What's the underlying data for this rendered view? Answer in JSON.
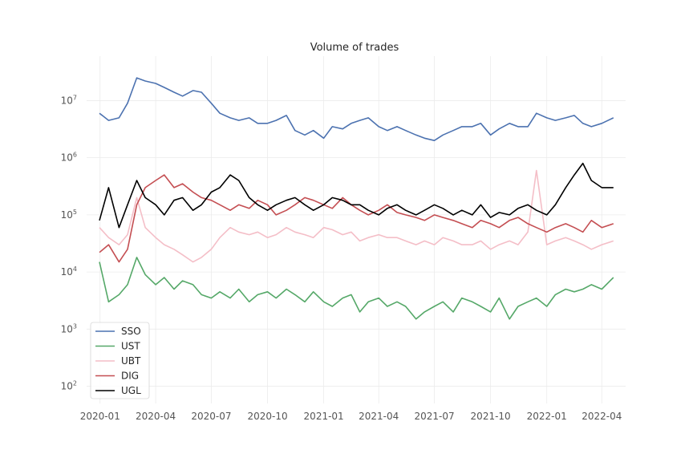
{
  "chart_data": {
    "type": "line",
    "title": "Volume of trades",
    "xlabel": "",
    "ylabel": "",
    "yscale": "log",
    "ylim": [
      50,
      60000000
    ],
    "xlim": [
      "2019-12-10",
      "2022-05-10"
    ],
    "y_ticks": [
      {
        "value": 100,
        "base": "10",
        "exp": "2"
      },
      {
        "value": 1000,
        "base": "10",
        "exp": "3"
      },
      {
        "value": 10000,
        "base": "10",
        "exp": "4"
      },
      {
        "value": 100000,
        "base": "10",
        "exp": "5"
      },
      {
        "value": 1000000,
        "base": "10",
        "exp": "6"
      },
      {
        "value": 10000000,
        "base": "10",
        "exp": "7"
      }
    ],
    "x_ticks": [
      {
        "date": "2020-01-01",
        "label": "2020-01"
      },
      {
        "date": "2020-04-01",
        "label": "2020-04"
      },
      {
        "date": "2020-07-01",
        "label": "2020-07"
      },
      {
        "date": "2020-10-01",
        "label": "2020-10"
      },
      {
        "date": "2021-01-01",
        "label": "2021-01"
      },
      {
        "date": "2021-04-01",
        "label": "2021-04"
      },
      {
        "date": "2021-07-01",
        "label": "2021-07"
      },
      {
        "date": "2021-10-01",
        "label": "2021-10"
      },
      {
        "date": "2022-01-01",
        "label": "2022-01"
      },
      {
        "date": "2022-04-01",
        "label": "2022-04"
      }
    ],
    "grid": true,
    "legend_position": "lower-left",
    "series": [
      {
        "name": "SSO",
        "color": "#4c72b0",
        "x": [
          "2019-12-31",
          "2020-01-15",
          "2020-02-01",
          "2020-02-15",
          "2020-03-01",
          "2020-03-15",
          "2020-04-01",
          "2020-04-15",
          "2020-05-01",
          "2020-05-15",
          "2020-06-01",
          "2020-06-15",
          "2020-07-01",
          "2020-07-15",
          "2020-08-01",
          "2020-08-15",
          "2020-09-01",
          "2020-09-15",
          "2020-10-01",
          "2020-10-15",
          "2020-11-01",
          "2020-11-15",
          "2020-12-01",
          "2020-12-15",
          "2021-01-01",
          "2021-01-15",
          "2021-02-01",
          "2021-02-15",
          "2021-03-01",
          "2021-03-15",
          "2021-04-01",
          "2021-04-15",
          "2021-05-01",
          "2021-05-15",
          "2021-06-01",
          "2021-06-15",
          "2021-07-01",
          "2021-07-15",
          "2021-08-01",
          "2021-08-15",
          "2021-09-01",
          "2021-09-15",
          "2021-10-01",
          "2021-10-15",
          "2021-11-01",
          "2021-11-15",
          "2021-12-01",
          "2021-12-15",
          "2022-01-01",
          "2022-01-15",
          "2022-02-01",
          "2022-02-15",
          "2022-03-01",
          "2022-03-15",
          "2022-04-01",
          "2022-04-20"
        ],
        "values": [
          6000000,
          4500000,
          5000000,
          9000000,
          25000000,
          22000000,
          20000000,
          17000000,
          14000000,
          12000000,
          15000000,
          14000000,
          9000000,
          6000000,
          5000000,
          4500000,
          5000000,
          4000000,
          4000000,
          4500000,
          5500000,
          3000000,
          2500000,
          3000000,
          2200000,
          3500000,
          3200000,
          4000000,
          4500000,
          5000000,
          3500000,
          3000000,
          3500000,
          3000000,
          2500000,
          2200000,
          2000000,
          2500000,
          3000000,
          3500000,
          3500000,
          4000000,
          2500000,
          3200000,
          4000000,
          3500000,
          3500000,
          6000000,
          5000000,
          4500000,
          5000000,
          5500000,
          4000000,
          3500000,
          4000000,
          5000000
        ]
      },
      {
        "name": "UST",
        "color": "#55a868",
        "x": [
          "2019-12-31",
          "2020-01-15",
          "2020-02-01",
          "2020-02-15",
          "2020-03-01",
          "2020-03-15",
          "2020-04-01",
          "2020-04-15",
          "2020-05-01",
          "2020-05-15",
          "2020-06-01",
          "2020-06-15",
          "2020-07-01",
          "2020-07-15",
          "2020-08-01",
          "2020-08-15",
          "2020-09-01",
          "2020-09-15",
          "2020-10-01",
          "2020-10-15",
          "2020-11-01",
          "2020-11-15",
          "2020-12-01",
          "2020-12-15",
          "2021-01-01",
          "2021-01-15",
          "2021-02-01",
          "2021-02-15",
          "2021-03-01",
          "2021-03-15",
          "2021-04-01",
          "2021-04-15",
          "2021-05-01",
          "2021-05-15",
          "2021-06-01",
          "2021-06-15",
          "2021-07-01",
          "2021-07-15",
          "2021-08-01",
          "2021-08-15",
          "2021-09-01",
          "2021-09-15",
          "2021-10-01",
          "2021-10-15",
          "2021-11-01",
          "2021-11-15",
          "2021-12-01",
          "2021-12-15",
          "2022-01-01",
          "2022-01-15",
          "2022-02-01",
          "2022-02-15",
          "2022-03-01",
          "2022-03-15",
          "2022-04-01",
          "2022-04-20"
        ],
        "values": [
          15000,
          3000,
          4000,
          6000,
          18000,
          9000,
          6000,
          8000,
          5000,
          7000,
          6000,
          4000,
          3500,
          4500,
          3500,
          5000,
          3000,
          4000,
          4500,
          3500,
          5000,
          4000,
          3000,
          4500,
          3000,
          2500,
          3500,
          4000,
          2000,
          3000,
          3500,
          2500,
          3000,
          2500,
          1500,
          2000,
          2500,
          3000,
          2000,
          3500,
          3000,
          2500,
          2000,
          3500,
          1500,
          2500,
          3000,
          3500,
          2500,
          4000,
          5000,
          4500,
          5000,
          6000,
          5000,
          8000
        ]
      },
      {
        "name": "UBT",
        "color": "#f4bec7",
        "x": [
          "2019-12-31",
          "2020-01-15",
          "2020-02-01",
          "2020-02-15",
          "2020-03-01",
          "2020-03-15",
          "2020-04-01",
          "2020-04-15",
          "2020-05-01",
          "2020-05-15",
          "2020-06-01",
          "2020-06-15",
          "2020-07-01",
          "2020-07-15",
          "2020-08-01",
          "2020-08-15",
          "2020-09-01",
          "2020-09-15",
          "2020-10-01",
          "2020-10-15",
          "2020-11-01",
          "2020-11-15",
          "2020-12-01",
          "2020-12-15",
          "2021-01-01",
          "2021-01-15",
          "2021-02-01",
          "2021-02-15",
          "2021-03-01",
          "2021-03-15",
          "2021-04-01",
          "2021-04-15",
          "2021-05-01",
          "2021-05-15",
          "2021-06-01",
          "2021-06-15",
          "2021-07-01",
          "2021-07-15",
          "2021-08-01",
          "2021-08-15",
          "2021-09-01",
          "2021-09-15",
          "2021-10-01",
          "2021-10-15",
          "2021-11-01",
          "2021-11-15",
          "2021-12-01",
          "2021-12-15",
          "2022-01-01",
          "2022-01-15",
          "2022-02-01",
          "2022-02-15",
          "2022-03-01",
          "2022-03-15",
          "2022-04-01",
          "2022-04-20"
        ],
        "values": [
          60000,
          40000,
          30000,
          45000,
          200000,
          60000,
          40000,
          30000,
          25000,
          20000,
          15000,
          18000,
          25000,
          40000,
          60000,
          50000,
          45000,
          50000,
          40000,
          45000,
          60000,
          50000,
          45000,
          40000,
          60000,
          55000,
          45000,
          50000,
          35000,
          40000,
          45000,
          40000,
          40000,
          35000,
          30000,
          35000,
          30000,
          40000,
          35000,
          30000,
          30000,
          35000,
          25000,
          30000,
          35000,
          30000,
          50000,
          600000,
          30000,
          35000,
          40000,
          35000,
          30000,
          25000,
          30000,
          35000
        ]
      },
      {
        "name": "DIG",
        "color": "#c44e52",
        "x": [
          "2019-12-31",
          "2020-01-15",
          "2020-02-01",
          "2020-02-15",
          "2020-03-01",
          "2020-03-15",
          "2020-04-01",
          "2020-04-15",
          "2020-05-01",
          "2020-05-15",
          "2020-06-01",
          "2020-06-15",
          "2020-07-01",
          "2020-07-15",
          "2020-08-01",
          "2020-08-15",
          "2020-09-01",
          "2020-09-15",
          "2020-10-01",
          "2020-10-15",
          "2020-11-01",
          "2020-11-15",
          "2020-12-01",
          "2020-12-15",
          "2021-01-01",
          "2021-01-15",
          "2021-02-01",
          "2021-02-15",
          "2021-03-01",
          "2021-03-15",
          "2021-04-01",
          "2021-04-15",
          "2021-05-01",
          "2021-05-15",
          "2021-06-01",
          "2021-06-15",
          "2021-07-01",
          "2021-07-15",
          "2021-08-01",
          "2021-08-15",
          "2021-09-01",
          "2021-09-15",
          "2021-10-01",
          "2021-10-15",
          "2021-11-01",
          "2021-11-15",
          "2021-12-01",
          "2021-12-15",
          "2022-01-01",
          "2022-01-15",
          "2022-02-01",
          "2022-02-15",
          "2022-03-01",
          "2022-03-15",
          "2022-04-01",
          "2022-04-20"
        ],
        "values": [
          22000,
          30000,
          15000,
          25000,
          150000,
          300000,
          400000,
          500000,
          300000,
          350000,
          250000,
          200000,
          180000,
          150000,
          120000,
          150000,
          130000,
          180000,
          150000,
          100000,
          120000,
          150000,
          200000,
          180000,
          150000,
          130000,
          200000,
          150000,
          120000,
          100000,
          120000,
          150000,
          110000,
          100000,
          90000,
          80000,
          100000,
          90000,
          80000,
          70000,
          60000,
          80000,
          70000,
          60000,
          80000,
          90000,
          70000,
          60000,
          50000,
          60000,
          70000,
          60000,
          50000,
          80000,
          60000,
          70000
        ]
      },
      {
        "name": "UGL",
        "color": "#000000",
        "x": [
          "2019-12-31",
          "2020-01-15",
          "2020-02-01",
          "2020-02-15",
          "2020-03-01",
          "2020-03-15",
          "2020-04-01",
          "2020-04-15",
          "2020-05-01",
          "2020-05-15",
          "2020-06-01",
          "2020-06-15",
          "2020-07-01",
          "2020-07-15",
          "2020-08-01",
          "2020-08-15",
          "2020-09-01",
          "2020-09-15",
          "2020-10-01",
          "2020-10-15",
          "2020-11-01",
          "2020-11-15",
          "2020-12-01",
          "2020-12-15",
          "2021-01-01",
          "2021-01-15",
          "2021-02-01",
          "2021-02-15",
          "2021-03-01",
          "2021-03-15",
          "2021-04-01",
          "2021-04-15",
          "2021-05-01",
          "2021-05-15",
          "2021-06-01",
          "2021-06-15",
          "2021-07-01",
          "2021-07-15",
          "2021-08-01",
          "2021-08-15",
          "2021-09-01",
          "2021-09-15",
          "2021-10-01",
          "2021-10-15",
          "2021-11-01",
          "2021-11-15",
          "2021-12-01",
          "2021-12-15",
          "2022-01-01",
          "2022-01-15",
          "2022-02-01",
          "2022-02-15",
          "2022-03-01",
          "2022-03-15",
          "2022-04-01",
          "2022-04-20"
        ],
        "values": [
          80000,
          300000,
          60000,
          150000,
          400000,
          200000,
          150000,
          100000,
          180000,
          200000,
          120000,
          150000,
          250000,
          300000,
          500000,
          400000,
          200000,
          150000,
          120000,
          150000,
          180000,
          200000,
          150000,
          120000,
          150000,
          200000,
          180000,
          150000,
          150000,
          120000,
          100000,
          130000,
          150000,
          120000,
          100000,
          120000,
          150000,
          130000,
          100000,
          120000,
          100000,
          150000,
          90000,
          110000,
          100000,
          130000,
          150000,
          120000,
          100000,
          150000,
          300000,
          500000,
          800000,
          400000,
          300000,
          300000
        ]
      }
    ]
  }
}
